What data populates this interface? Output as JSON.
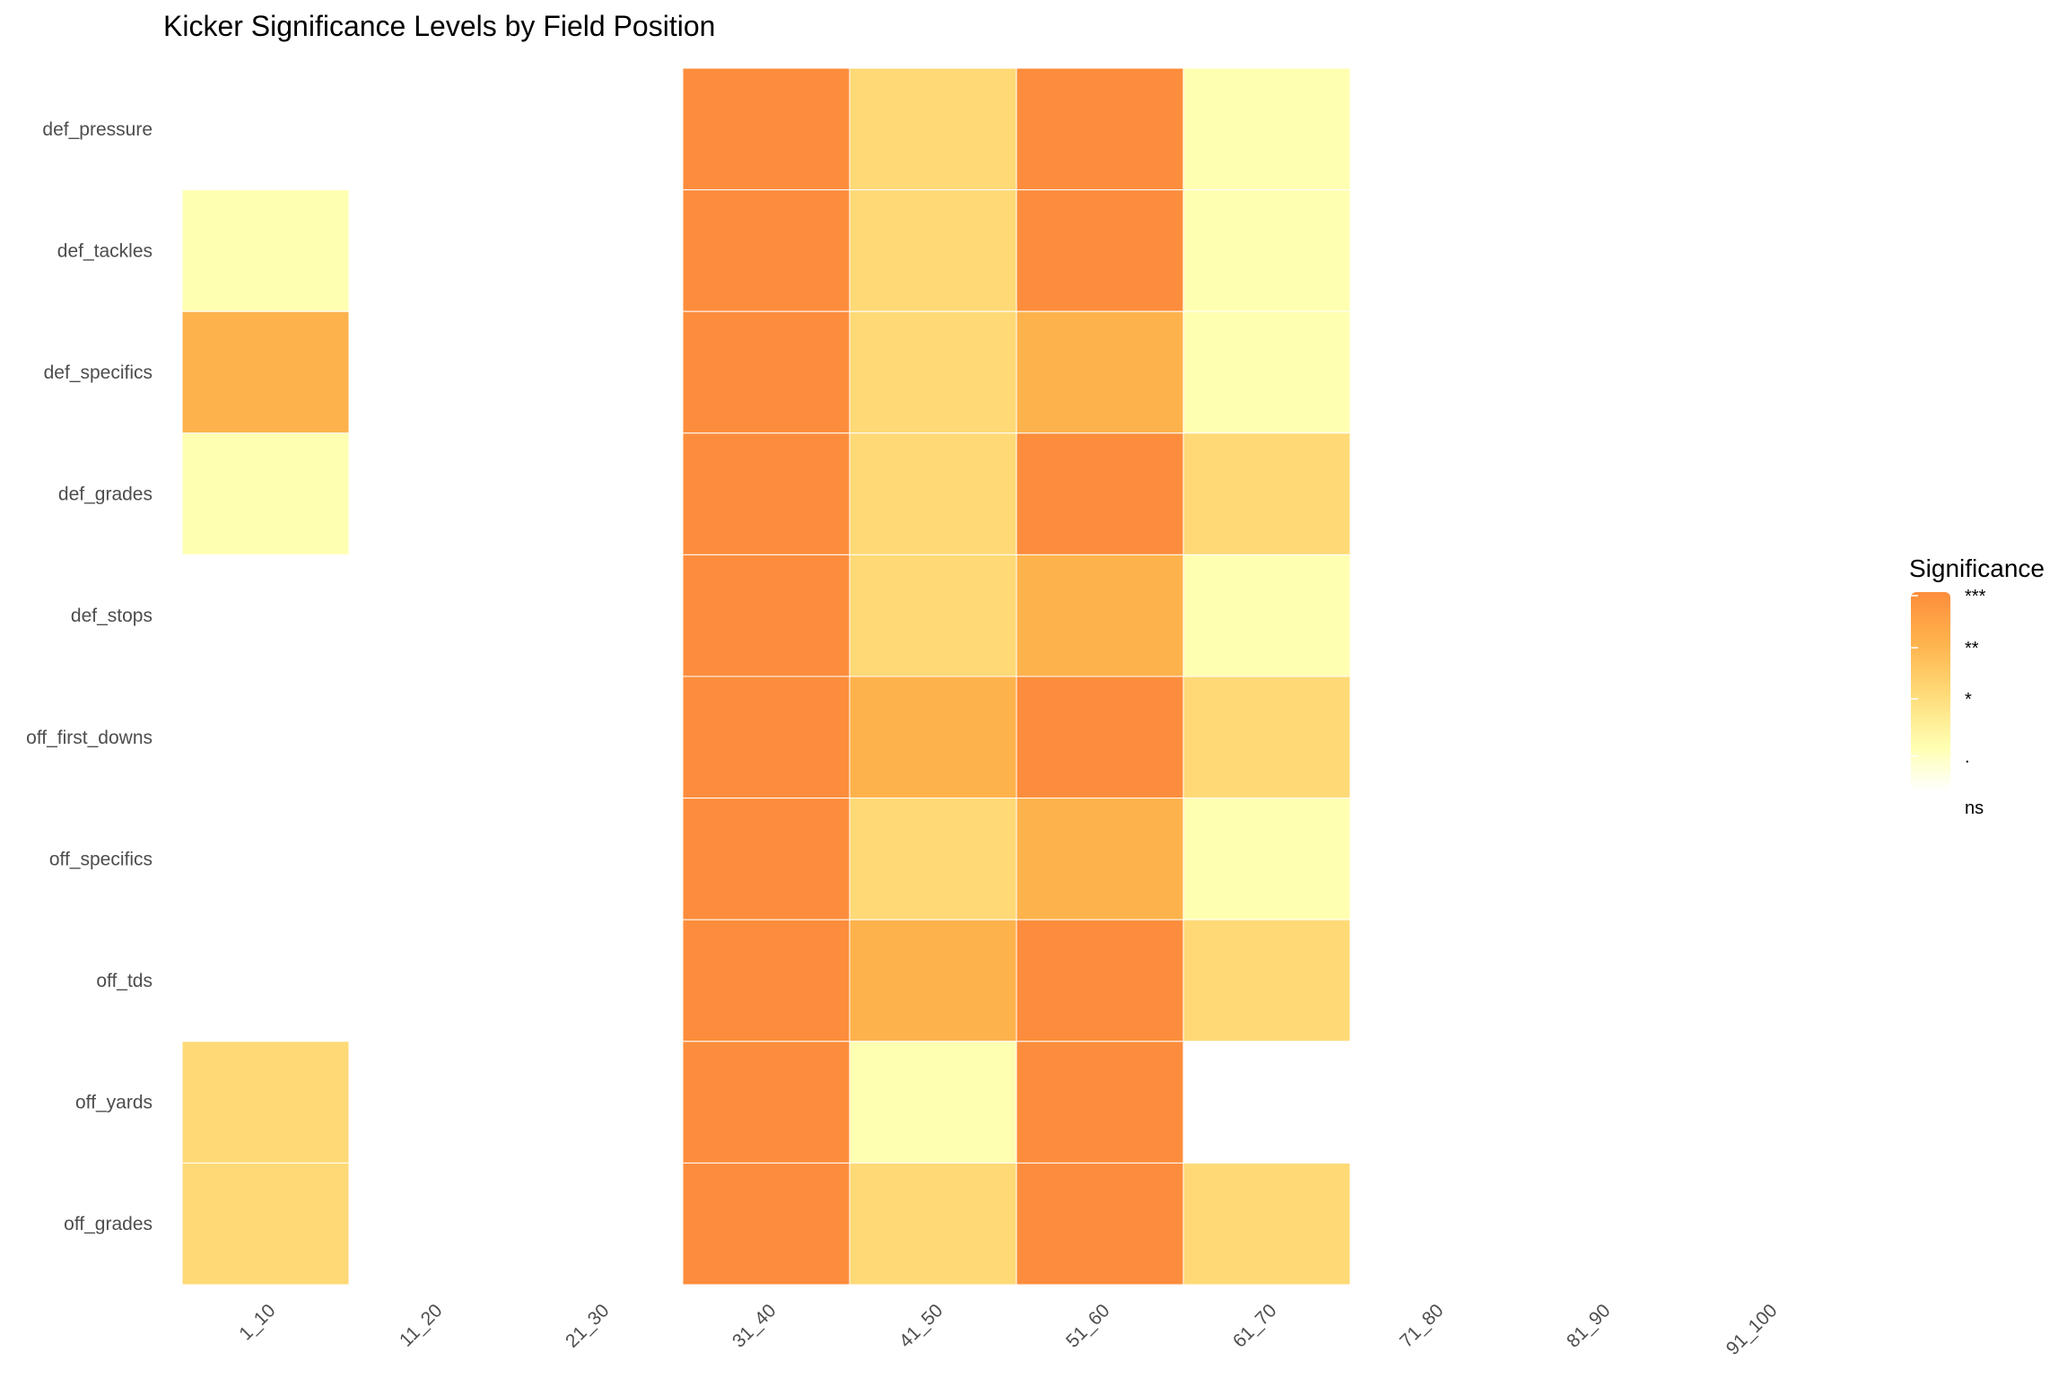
{
  "chart_data": {
    "type": "heatmap",
    "title": "Kicker Significance Levels by Field Position",
    "xlabel": "",
    "ylabel": "",
    "x_categories": [
      "1_10",
      "11_20",
      "21_30",
      "31_40",
      "41_50",
      "51_60",
      "61_70",
      "71_80",
      "81_90",
      "91_100"
    ],
    "y_categories": [
      "def_pressure",
      "def_tackles",
      "def_specifics",
      "def_grades",
      "def_stops",
      "off_first_downs",
      "off_specifics",
      "off_tds",
      "off_yards",
      "off_grades"
    ],
    "levels": [
      "ns",
      ".",
      "*",
      "**",
      "***"
    ],
    "values": [
      [
        "ns",
        "ns",
        "ns",
        "***",
        "*",
        "***",
        ".",
        "ns",
        "ns",
        "ns"
      ],
      [
        ".",
        "ns",
        "ns",
        "***",
        "*",
        "***",
        ".",
        "ns",
        "ns",
        "ns"
      ],
      [
        "**",
        "ns",
        "ns",
        "***",
        "*",
        "**",
        ".",
        "ns",
        "ns",
        "ns"
      ],
      [
        ".",
        "ns",
        "ns",
        "***",
        "*",
        "***",
        "*",
        "ns",
        "ns",
        "ns"
      ],
      [
        "ns",
        "ns",
        "ns",
        "***",
        "*",
        "**",
        ".",
        "ns",
        "ns",
        "ns"
      ],
      [
        "ns",
        "ns",
        "ns",
        "***",
        "**",
        "***",
        "*",
        "ns",
        "ns",
        "ns"
      ],
      [
        "ns",
        "ns",
        "ns",
        "***",
        "*",
        "**",
        ".",
        "ns",
        "ns",
        "ns"
      ],
      [
        "ns",
        "ns",
        "ns",
        "***",
        "**",
        "***",
        "*",
        "ns",
        "ns",
        "ns"
      ],
      [
        "*",
        "ns",
        "ns",
        "***",
        ".",
        "***",
        "ns",
        "ns",
        "ns",
        "ns"
      ],
      [
        "*",
        "ns",
        "ns",
        "***",
        "*",
        "***",
        "*",
        "ns",
        "ns",
        "ns"
      ]
    ],
    "colors": {
      "ns": "#ffffff",
      ".": "#ffffb2",
      "*": "#fed976",
      "**": "#feb24c",
      "***": "#fd8d3c"
    },
    "legend": {
      "title": "Significance",
      "position": "right",
      "labels_top_to_bottom": [
        "***",
        "**",
        "*",
        ".",
        "ns"
      ]
    },
    "grid": false
  }
}
